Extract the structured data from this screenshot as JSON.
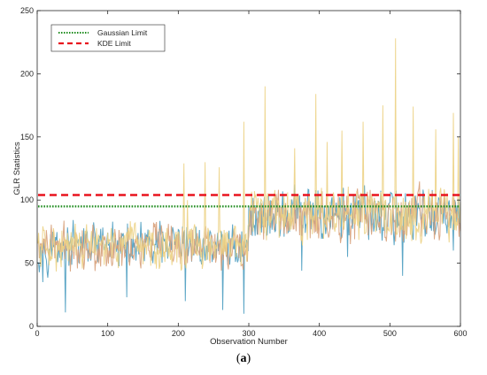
{
  "caption": {
    "open": "(",
    "letter": "a",
    "close": ")"
  },
  "chart_data": {
    "type": "line",
    "title": "",
    "xlabel": "Observation Number",
    "ylabel": "GLR Statistics",
    "xlim": [
      0,
      600
    ],
    "ylim": [
      0,
      250
    ],
    "xticks": [
      0,
      100,
      200,
      300,
      400,
      500,
      600
    ],
    "yticks": [
      0,
      50,
      100,
      150,
      200,
      250
    ],
    "grid": false,
    "legend_position": "top-left",
    "thresholds": [
      {
        "name": "Gaussian Limit",
        "value": 95,
        "color": "#1e8c1e",
        "style": "dotted"
      },
      {
        "name": "KDE Limit",
        "value": 104,
        "color": "#e8141e",
        "style": "dashed"
      }
    ],
    "series_colors": [
      "#4a9cc0",
      "#d7a07a",
      "#ecd184"
    ],
    "series": [
      {
        "x": [
          1,
          600
        ],
        "values": [
          60,
          78
        ]
      },
      {
        "x": [
          1,
          600
        ],
        "values": [
          60,
          85
        ]
      },
      {
        "x": [
          1,
          600
        ],
        "values": [
          60,
          88
        ]
      }
    ],
    "peaks": [
      {
        "x": 208,
        "value": 129
      },
      {
        "x": 213,
        "value": 100
      },
      {
        "x": 238,
        "value": 130
      },
      {
        "x": 258,
        "value": 126
      },
      {
        "x": 293,
        "value": 162
      },
      {
        "x": 323,
        "value": 190
      },
      {
        "x": 365,
        "value": 141
      },
      {
        "x": 395,
        "value": 184
      },
      {
        "x": 411,
        "value": 146
      },
      {
        "x": 432,
        "value": 155
      },
      {
        "x": 462,
        "value": 162
      },
      {
        "x": 490,
        "value": 175
      },
      {
        "x": 508,
        "value": 228
      },
      {
        "x": 533,
        "value": 174
      },
      {
        "x": 565,
        "value": 156
      },
      {
        "x": 590,
        "value": 169
      },
      {
        "x": 597,
        "value": 150
      }
    ],
    "troughs": [
      {
        "x": 8,
        "value": 35
      },
      {
        "x": 40,
        "value": 11
      },
      {
        "x": 127,
        "value": 23
      },
      {
        "x": 210,
        "value": 20
      },
      {
        "x": 263,
        "value": 13
      },
      {
        "x": 293,
        "value": 10
      },
      {
        "x": 375,
        "value": 44
      },
      {
        "x": 440,
        "value": 55
      },
      {
        "x": 518,
        "value": 40
      },
      {
        "x": 590,
        "value": 60
      }
    ]
  }
}
